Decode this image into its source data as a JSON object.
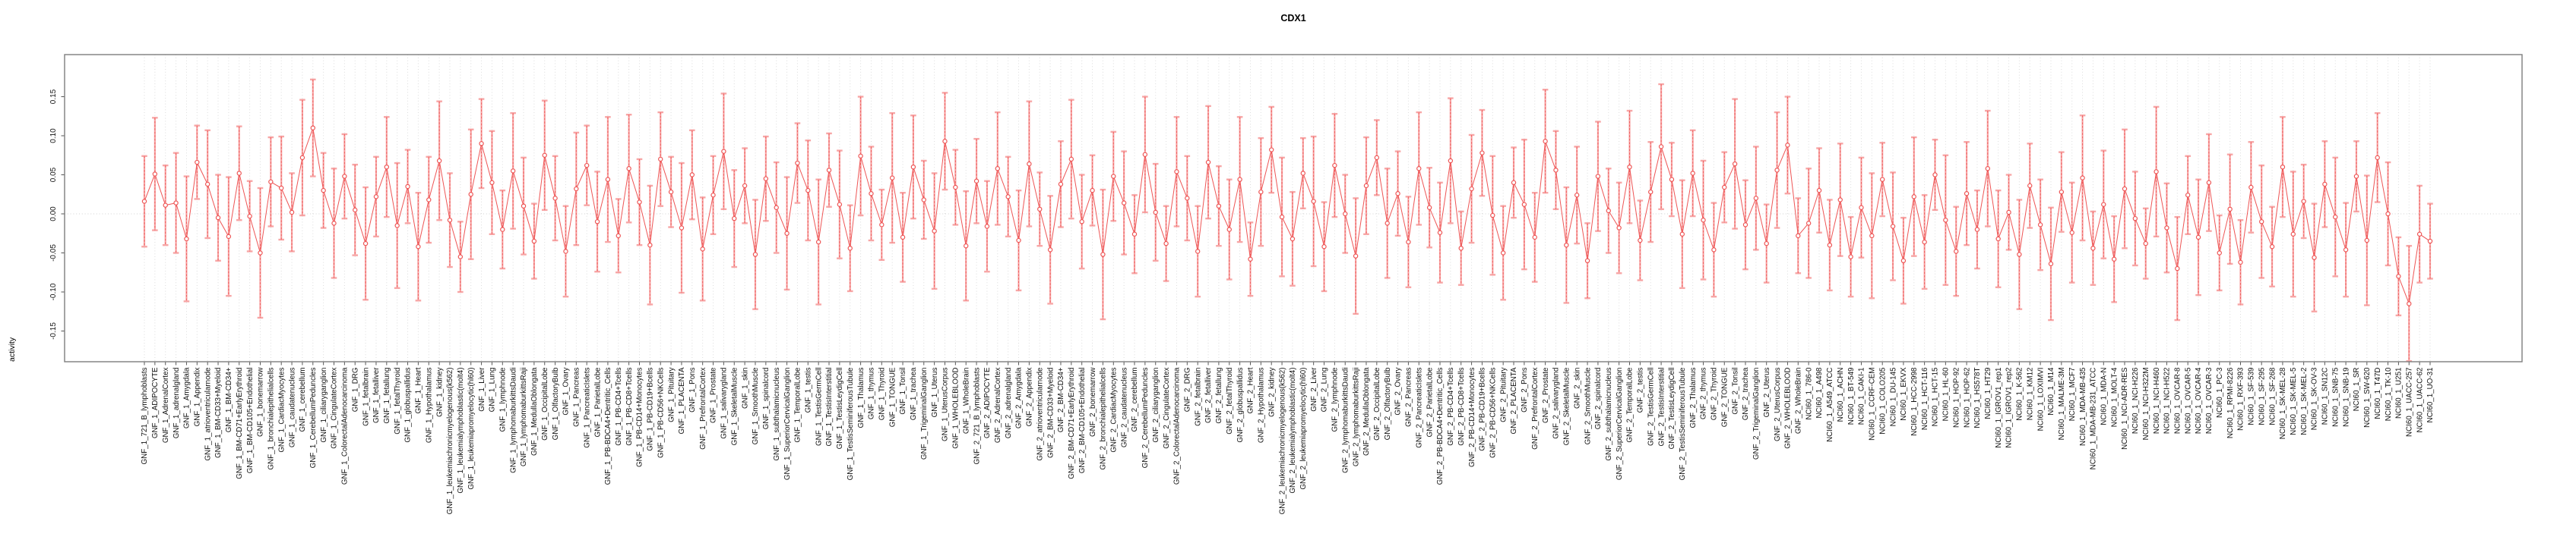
{
  "figure": {
    "title": "CDX1"
  },
  "colors": {
    "point_line_red": "#ee5555",
    "error_stem_dashed_red": "#f06060",
    "error_bar_pink": "#f7a6a6",
    "grid_gray": "#dcdcdc",
    "zero_line_gray": "#d2d2d2",
    "box_gray": "#7d7d7d",
    "tick_dark": "#555555",
    "label_black": "#111111"
  },
  "chart_data": {
    "type": "line",
    "subtype": "points-with-error-bars",
    "title": "CDX1",
    "xlabel": "",
    "ylabel": "activity",
    "ylim": [
      -0.195,
      0.204
    ],
    "grid": "vertical-dotted-per-category-plus-dotted-zero-line",
    "legend_position": "none",
    "marker": "open-circle",
    "x_tick_rotation_deg": 90,
    "y_ticks": {
      "labels": [
        "0.15",
        "0.10",
        "0.05",
        "0.00",
        "-0.05",
        "-0.10",
        "-0.15"
      ],
      "values": [
        0.15,
        0.1,
        0.05,
        0.0,
        -0.05,
        -0.1,
        -0.15
      ]
    },
    "categories": [
      "GNF_1_721_B_lymphoblasts",
      "GNF_1_ADIPOCYTE",
      "GNF_1_AdrenalCortex",
      "GNF_1_adrenalgland",
      "GNF_1_Amygdala",
      "GNF_1_Appendix",
      "GNF_1_atrioventricularnode",
      "GNF_1_BM-CD33+Myeloid",
      "GNF_1_BM-CD34+",
      "GNF_1_BM-CD71+EarlyErythroid",
      "GNF_1_BM-CD105+Endothelial",
      "GNF_1_bonemarrow",
      "GNF_1_bronchialepithelialcells",
      "GNF_1_CardiacMyocytes",
      "GNF_1_caudatenucleus",
      "GNF_1_cerebellum",
      "GNF_1_CerebellumPeduncles",
      "GNF_1_ciliaryganglion",
      "GNF_1_CingulateCortex",
      "GNF_1_ColorectalAdenocarcinoma",
      "GNF_1_DRG",
      "GNF_1_fetalbrain",
      "GNF_1_fetalliver",
      "GNF_1_fetallung",
      "GNF_1_fetalThyroid",
      "GNF_1_globuspallidus",
      "GNF_1_Heart",
      "GNF_1_Hypothalamus",
      "GNF_1_kidney",
      "GNF_1_leukemiachronicmyelogenous(k562)",
      "GNF_1_leukemialymphoblastic(molt4)",
      "GNF_1_leukemiapromyelocytic(hl60)",
      "GNF_1_Liver",
      "GNF_1_Lung",
      "GNF_1_lymphnode",
      "GNF_1_lymphomaburkittsDaudi",
      "GNF_1_lymphomaburkittsRaji",
      "GNF_1_MedullaOblongata",
      "GNF_1_OccipitalLobe",
      "GNF_1_OlfactoryBulb",
      "GNF_1_Ovary",
      "GNF_1_Pancreas",
      "GNF_1_PancreaticIslets",
      "GNF_1_ParietalLobe",
      "GNF_1_PB-BDCA4+Dentritic_Cells",
      "GNF_1_PB-CD4+Tcells",
      "GNF_1_PB-CD8+Tcells",
      "GNF_1_PB-CD14+Monocytes",
      "GNF_1_PB-CD19+Bcells",
      "GNF_1_PB-CD56+NKCells",
      "GNF_1_Pituitary",
      "GNF_1_PLACENTA",
      "GNF_1_Pons",
      "GNF_1_PrefrontalCortex",
      "GNF_1_Prostate",
      "GNF_1_salivarygland",
      "GNF_1_SkeletalMuscle",
      "GNF_1_skin",
      "GNF_1_SmoothMuscle",
      "GNF_1_spinalcord",
      "GNF_1_subthalamicnucleus",
      "GNF_1_SuperiorCervicalGanglion",
      "GNF_1_TemporalLobe",
      "GNF_1_testis",
      "GNF_1_TestisGermCell",
      "GNF_1_TestisInterstitial",
      "GNF_1_TestisLeydigCell",
      "GNF_1_TestisSeminiferousTubule",
      "GNF_1_Thalamus",
      "GNF_1_thymus",
      "GNF_1_Thyroid",
      "GNF_1_TONGUE",
      "GNF_1_Tonsil",
      "GNF_1_trachea",
      "GNF_1_TrigeminalGanglion",
      "GNF_1_Uterus",
      "GNF_1_UterusCorpus",
      "GNF_1_WHOLEBLOOD",
      "GNF_1_WholeBrain",
      "GNF_2_721_B_lymphoblasts",
      "GNF_2_ADIPOCYTE",
      "GNF_2_AdrenalCortex",
      "GNF_2_adrenalgland",
      "GNF_2_Amygdala",
      "GNF_2_Appendix",
      "GNF_2_atrioventricularnode",
      "GNF_2_BM-CD33+Myeloid",
      "GNF_2_BM-CD34+",
      "GNF_2_BM-CD71+EarlyErythroid",
      "GNF_2_BM-CD105+Endothelial",
      "GNF_2_bonemarrow",
      "GNF_2_bronchialepithelialcells",
      "GNF_2_CardiacMyocytes",
      "GNF_2_caudatenucleus",
      "GNF_2_cerebellum",
      "GNF_2_CerebellumPeduncles",
      "GNF_2_ciliaryganglion",
      "GNF_2_CingulateCortex",
      "GNF_2_ColorectalAdenocarcinoma",
      "GNF_2_DRG",
      "GNF_2_fetalbrain",
      "GNF_2_fetalliver",
      "GNF_2_fetallung",
      "GNF_2_fetalThyroid",
      "GNF_2_globuspallidus",
      "GNF_2_Heart",
      "GNF_2_Hypothalamus",
      "GNF_2_kidney",
      "GNF_2_leukemiachronicmyelogenous(k562)",
      "GNF_2_leukemialymphoblastic(molt4)",
      "GNF_2_leukemiapromyelocytic(hl60)",
      "GNF_2_Liver",
      "GNF_2_Lung",
      "GNF_2_lymphnode",
      "GNF_2_lymphomaburkittsDaudi",
      "GNF_2_lymphomaburkittsRaji",
      "GNF_2_MedullaOblongata",
      "GNF_2_OccipitalLobe",
      "GNF_2_OlfactoryBulb",
      "GNF_2_Ovary",
      "GNF_2_Pancreas",
      "GNF_2_PancreaticIslets",
      "GNF_2_ParietalLobe",
      "GNF_2_PB-BDCA4+Dentritic_Cells",
      "GNF_2_PB-CD4+Tcells",
      "GNF_2_PB-CD8+Tcells",
      "GNF_2_PB-CD14+Monocytes",
      "GNF_2_PB-CD19+Bcells",
      "GNF_2_PB-CD56+NKCells",
      "GNF_2_Pituitary",
      "GNF_2_PLACENTA",
      "GNF_2_Pons",
      "GNF_2_PrefrontalCortex",
      "GNF_2_Prostate",
      "GNF_2_salivarygland",
      "GNF_2_SkeletalMuscle",
      "GNF_2_skin",
      "GNF_2_SmoothMuscle",
      "GNF_2_spinalcord",
      "GNF_2_subthalamicnucleus",
      "GNF_2_SuperiorCervicalGanglion",
      "GNF_2_TemporalLobe",
      "GNF_2_testis",
      "GNF_2_TestisGermCell",
      "GNF_2_TestisInterstitial",
      "GNF_2_TestisLeydigCell",
      "GNF_2_TestisSeminiferousTubule",
      "GNF_2_Thalamus",
      "GNF_2_thymus",
      "GNF_2_Thyroid",
      "GNF_2_TONGUE",
      "GNF_2_Tonsil",
      "GNF_2_trachea",
      "GNF_2_TrigeminalGanglion",
      "GNF_2_Uterus",
      "GNF_2_UterusCorpus",
      "GNF_2_WHOLEBLOOD",
      "GNF_2_WholeBrain",
      "NCI60_1_786-0",
      "NCI60_1_A498",
      "NCI60_1_A549_ATCC",
      "NCI60_1_ACHN",
      "NCI60_1_BT-549",
      "NCI60_1_CAKI-1",
      "NCI60_1_CCRF-CEM",
      "NCI60_1_COLO205",
      "NCI60_1_DU-145",
      "NCI60_1_EKVX",
      "NCI60_1_HCC-2998",
      "NCI60_1_HCT-116",
      "NCI60_1_HCT-15",
      "NCI60_1_HL-60",
      "NCI60_1_HOP-92",
      "NCI60_1_HOP-62",
      "NCI60_1_HS578T",
      "NCI60_1_HT29",
      "NCI60_1_IGROV1_rep1",
      "NCI60_1_IGROV1_rep2",
      "NCI60_1_K-562",
      "NCI60_1_KM12",
      "NCI60_1_LOXIMVI",
      "NCI60_1_M14",
      "NCI60_1_MALME-3M",
      "NCI60_1_MCF7",
      "NCI60_1_MDA-MB-435",
      "NCI60_1_MDA-MB-231_ATCC",
      "NCI60_1_MDA-N",
      "NCI60_1_MOLT-4",
      "NCI60_1_NCI-ADR-RES",
      "NCI60_1_NCI-H226",
      "NCI60_1_NCI-H322M",
      "NCI60_1_NCI-H460",
      "NCI60_1_NCI-H522",
      "NCI60_1_OVCAR-8",
      "NCI60_1_OVCAR-5",
      "NCI60_1_OVCAR-4",
      "NCI60_1_OVCAR-3",
      "NCI60_1_PC-3",
      "NCI60_1_RPMI-8226",
      "NCI60_1_RXF-393",
      "NCI60_1_SF-539",
      "NCI60_1_SF-295",
      "NCI60_1_SF-268",
      "NCI60_1_SK-MEL-28",
      "NCI60_1_SK-MEL-5",
      "NCI60_1_SK-MEL-2",
      "NCI60_1_SK-OV-3",
      "NCI60_1_SN12C",
      "NCI60_1_SNB-75",
      "NCI60_1_SNB-19",
      "NCI60_1_SR",
      "NCI60_1_SW-620",
      "NCI60_1_T47D",
      "NCI60_1_TK-10",
      "NCI60_1_U251",
      "NCI60_1_UACC-257",
      "NCI60_1_UACC-62",
      "NCI60_1_UO-31"
    ],
    "series": [
      {
        "name": "activity",
        "values": [
          0.016,
          0.051,
          0.011,
          0.014,
          -0.032,
          0.066,
          0.038,
          -0.005,
          -0.029,
          0.052,
          -0.003,
          -0.05,
          0.041,
          0.033,
          0.002,
          0.072,
          0.11,
          0.03,
          -0.012,
          0.048,
          0.005,
          -0.038,
          0.022,
          0.06,
          -0.015,
          0.035,
          -0.042,
          0.018,
          0.068,
          -0.008,
          -0.055,
          0.025,
          0.09,
          0.04,
          -0.02,
          0.055,
          0.01,
          -0.035,
          0.075,
          0.02,
          -0.048,
          0.032,
          0.062,
          -0.01,
          0.044,
          -0.028,
          0.058,
          0.015,
          -0.04,
          0.07,
          0.028,
          -0.018,
          0.05,
          -0.045,
          0.024,
          0.08,
          -0.006,
          0.036,
          -0.052,
          0.045,
          0.008,
          -0.025,
          0.065,
          0.03,
          -0.036,
          0.056,
          0.012,
          -0.044,
          0.074,
          0.026,
          -0.014,
          0.046,
          -0.03,
          0.06,
          0.018,
          -0.022,
          0.093,
          0.034,
          -0.041,
          0.042,
          -0.016,
          0.058,
          0.022,
          -0.034,
          0.064,
          0.006,
          -0.046,
          0.038,
          0.07,
          -0.01,
          0.03,
          -0.052,
          0.048,
          0.014,
          -0.026,
          0.076,
          0.002,
          -0.038,
          0.054,
          0.02,
          -0.048,
          0.066,
          0.01,
          -0.02,
          0.044,
          -0.058,
          0.028,
          0.082,
          -0.004,
          -0.032,
          0.052,
          0.016,
          -0.042,
          0.062,
          0.0,
          -0.054,
          0.036,
          0.072,
          -0.012,
          0.026,
          -0.036,
          0.058,
          0.008,
          -0.024,
          0.068,
          -0.044,
          0.032,
          0.078,
          -0.002,
          -0.05,
          0.04,
          0.012,
          -0.03,
          0.093,
          0.056,
          -0.04,
          0.024,
          -0.06,
          0.048,
          0.004,
          -0.018,
          0.06,
          -0.034,
          0.028,
          0.086,
          0.044,
          -0.026,
          0.052,
          -0.008,
          -0.046,
          0.034,
          0.064,
          -0.014,
          0.02,
          -0.038,
          0.056,
          0.088,
          -0.028,
          -0.012,
          0.03,
          -0.04,
          0.018,
          -0.055,
          0.008,
          -0.028,
          0.044,
          -0.016,
          -0.06,
          0.022,
          -0.036,
          0.05,
          -0.008,
          -0.048,
          0.026,
          -0.02,
          0.058,
          -0.032,
          0.002,
          -0.052,
          0.036,
          -0.014,
          -0.064,
          0.028,
          -0.024,
          0.046,
          -0.044,
          0.012,
          -0.058,
          0.032,
          -0.006,
          -0.038,
          0.054,
          -0.018,
          -0.07,
          0.024,
          -0.03,
          0.04,
          -0.05,
          0.006,
          -0.062,
          0.034,
          -0.01,
          -0.042,
          0.06,
          -0.026,
          0.016,
          -0.056,
          0.038,
          -0.004,
          -0.046,
          0.048,
          -0.034,
          0.072,
          0.0,
          -0.08,
          -0.115,
          -0.026,
          -0.035
        ],
        "errors": [
          0.058,
          0.072,
          0.051,
          0.064,
          0.08,
          0.047,
          0.069,
          0.055,
          0.076,
          0.06,
          0.045,
          0.083,
          0.057,
          0.066,
          0.05,
          0.074,
          0.062,
          0.048,
          0.07,
          0.054,
          0.058,
          0.072,
          0.051,
          0.064,
          0.08,
          0.047,
          0.069,
          0.055,
          0.076,
          0.06,
          0.045,
          0.083,
          0.057,
          0.066,
          0.05,
          0.074,
          0.062,
          0.048,
          0.07,
          0.054,
          0.058,
          0.072,
          0.051,
          0.064,
          0.08,
          0.047,
          0.069,
          0.055,
          0.076,
          0.06,
          0.045,
          0.083,
          0.057,
          0.066,
          0.05,
          0.074,
          0.062,
          0.048,
          0.07,
          0.054,
          0.058,
          0.072,
          0.051,
          0.064,
          0.08,
          0.047,
          0.069,
          0.055,
          0.076,
          0.06,
          0.045,
          0.083,
          0.057,
          0.066,
          0.05,
          0.074,
          0.062,
          0.048,
          0.07,
          0.054,
          0.058,
          0.072,
          0.051,
          0.064,
          0.08,
          0.047,
          0.069,
          0.055,
          0.076,
          0.06,
          0.045,
          0.083,
          0.057,
          0.066,
          0.05,
          0.074,
          0.062,
          0.048,
          0.07,
          0.054,
          0.058,
          0.072,
          0.051,
          0.064,
          0.08,
          0.047,
          0.069,
          0.055,
          0.076,
          0.06,
          0.045,
          0.083,
          0.057,
          0.066,
          0.05,
          0.074,
          0.062,
          0.048,
          0.07,
          0.054,
          0.058,
          0.072,
          0.051,
          0.064,
          0.08,
          0.047,
          0.069,
          0.055,
          0.076,
          0.06,
          0.045,
          0.083,
          0.057,
          0.066,
          0.05,
          0.074,
          0.062,
          0.048,
          0.07,
          0.054,
          0.058,
          0.072,
          0.051,
          0.064,
          0.08,
          0.047,
          0.069,
          0.055,
          0.076,
          0.06,
          0.045,
          0.083,
          0.057,
          0.066,
          0.05,
          0.074,
          0.062,
          0.048,
          0.07,
          0.054,
          0.058,
          0.072,
          0.051,
          0.064,
          0.08,
          0.047,
          0.069,
          0.055,
          0.076,
          0.06,
          0.045,
          0.083,
          0.057,
          0.066,
          0.05,
          0.074,
          0.062,
          0.048,
          0.07,
          0.054,
          0.058,
          0.072,
          0.051,
          0.064,
          0.08,
          0.047,
          0.069,
          0.055,
          0.076,
          0.06,
          0.045,
          0.083,
          0.057,
          0.066,
          0.05,
          0.074,
          0.062,
          0.048,
          0.07,
          0.054,
          0.058,
          0.072,
          0.051,
          0.064,
          0.08,
          0.047,
          0.069,
          0.055,
          0.076,
          0.06,
          0.045,
          0.083,
          0.057,
          0.066,
          0.05,
          0.074,
          0.062,
          0.048
        ]
      }
    ]
  }
}
